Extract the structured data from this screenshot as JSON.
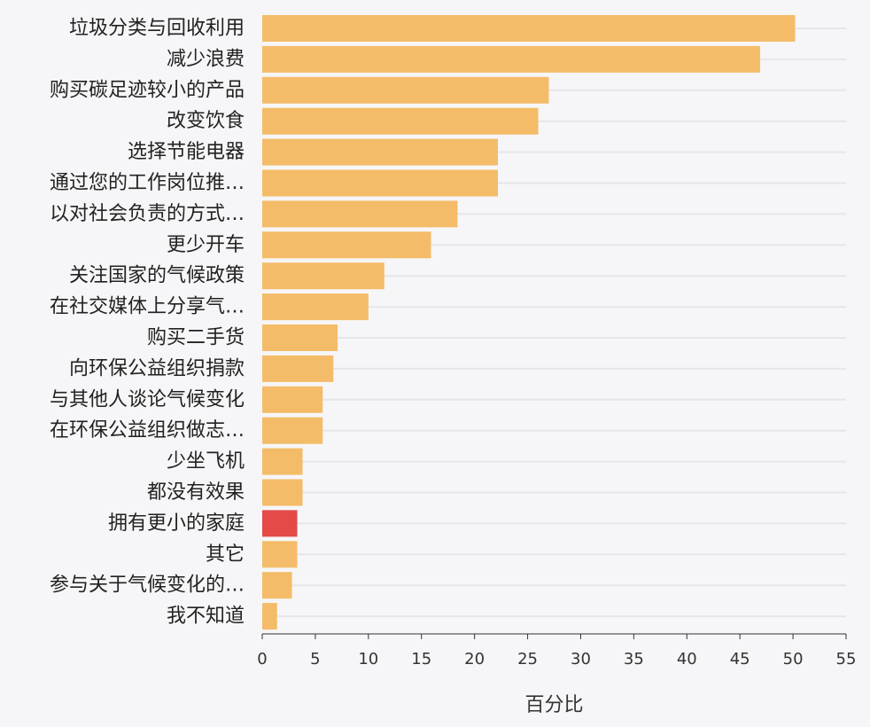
{
  "chart_data": {
    "type": "bar",
    "orientation": "horizontal",
    "title": "",
    "xlabel": "百分比",
    "ylabel": "",
    "xlim": [
      0,
      55
    ],
    "x_ticks": [
      0,
      5,
      10,
      15,
      20,
      25,
      30,
      35,
      40,
      45,
      50,
      55
    ],
    "grid": true,
    "categories": [
      "垃圾分类与回收利用",
      "减少浪费",
      "购买碳足迹较小的产品",
      "改变饮食",
      "选择节能电器",
      "通过您的工作岗位推…",
      "以对社会负责的方式…",
      "更少开车",
      "关注国家的气候政策",
      "在社交媒体上分享气…",
      "购买二手货",
      "向环保公益组织捐款",
      "与其他人谈论气候变化",
      "在环保公益组织做志…",
      "少坐飞机",
      "都没有效果",
      "拥有更小的家庭",
      "其它",
      "参与关于气候变化的…",
      "我不知道"
    ],
    "values": [
      50.2,
      46.9,
      27.0,
      26.0,
      22.2,
      22.2,
      18.4,
      15.9,
      11.5,
      10.0,
      7.1,
      6.7,
      5.7,
      5.7,
      3.8,
      3.8,
      3.3,
      3.3,
      2.8,
      1.4
    ],
    "highlight_category": "拥有更小的家庭",
    "colors": {
      "bar": "#f4bc69",
      "highlight": "#e34a48",
      "grid": "#e6e6ea",
      "background": "#f6f6f8"
    }
  }
}
